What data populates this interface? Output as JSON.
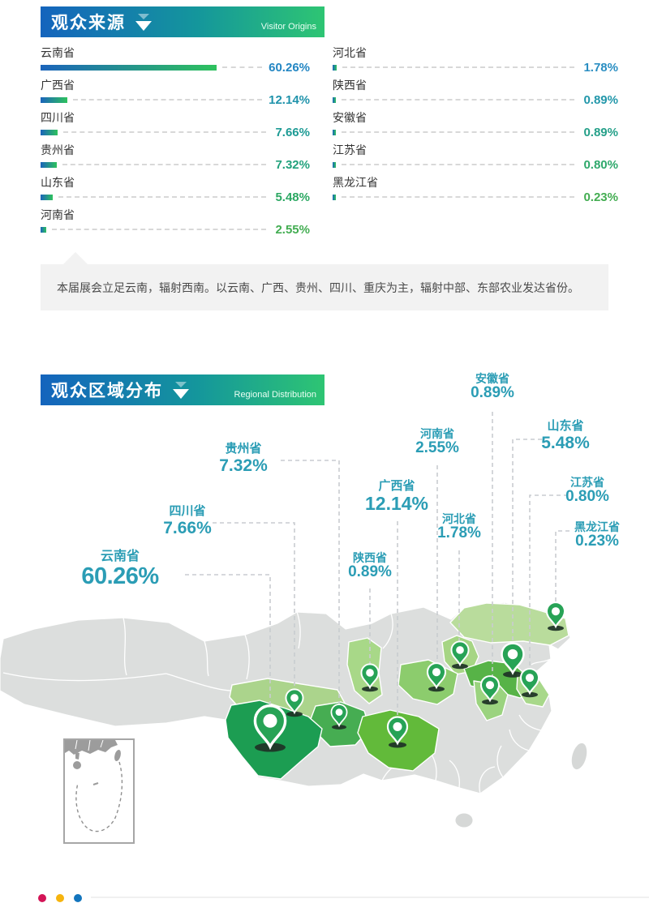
{
  "origins": {
    "title": "观众来源",
    "subtitle": "Visitor Origins",
    "items_left": [
      {
        "label": "云南省",
        "value": 60.26,
        "pct": "60.26%",
        "color": "#2386c3"
      },
      {
        "label": "广西省",
        "value": 12.14,
        "pct": "12.14%",
        "color": "#2093ab"
      },
      {
        "label": "四川省",
        "value": 7.66,
        "pct": "7.66%",
        "color": "#1e9b95"
      },
      {
        "label": "贵州省",
        "value": 7.32,
        "pct": "7.32%",
        "color": "#23a27d"
      },
      {
        "label": "山东省",
        "value": 5.48,
        "pct": "5.48%",
        "color": "#2ca863"
      },
      {
        "label": "河南省",
        "value": 2.55,
        "pct": "2.55%",
        "color": "#43ad52"
      }
    ],
    "items_right": [
      {
        "label": "河北省",
        "value": 1.78,
        "pct": "1.78%",
        "color": "#2a8ec2"
      },
      {
        "label": "陕西省",
        "value": 0.89,
        "pct": "0.89%",
        "color": "#2297aa"
      },
      {
        "label": "安徽省",
        "value": 0.89,
        "pct": "0.89%",
        "color": "#25a089"
      },
      {
        "label": "江苏省",
        "value": 0.8,
        "pct": "0.80%",
        "color": "#2ea86b"
      },
      {
        "label": "黑龙江省",
        "value": 0.23,
        "pct": "0.23%",
        "color": "#44ad52"
      }
    ],
    "note": "本届展会立足云南，辐射西南。以云南、广西、贵州、四川、重庆为主，辐射中部、东部农业发达省份。"
  },
  "distribution": {
    "title": "观众区域分布",
    "subtitle": "Regional Distribution",
    "regions": [
      {
        "name": "云南省",
        "pct": "60.26%"
      },
      {
        "name": "四川省",
        "pct": "7.66%"
      },
      {
        "name": "贵州省",
        "pct": "7.32%"
      },
      {
        "name": "广西省",
        "pct": "12.14%"
      },
      {
        "name": "陕西省",
        "pct": "0.89%"
      },
      {
        "name": "河南省",
        "pct": "2.55%"
      },
      {
        "name": "河北省",
        "pct": "1.78%"
      },
      {
        "name": "安徽省",
        "pct": "0.89%"
      },
      {
        "name": "山东省",
        "pct": "5.48%"
      },
      {
        "name": "江苏省",
        "pct": "0.80%"
      },
      {
        "name": "黑龙江省",
        "pct": "0.23%"
      }
    ]
  },
  "footer": {
    "dot_colors": [
      "#d31456",
      "#f6b40e",
      "#1375bd"
    ]
  },
  "chart_data": {
    "type": "bar",
    "title": "观众来源 (Visitor Origins)",
    "categories": [
      "云南省",
      "广西省",
      "四川省",
      "贵州省",
      "山东省",
      "河南省",
      "河北省",
      "陕西省",
      "安徽省",
      "江苏省",
      "黑龙江省"
    ],
    "values": [
      60.26,
      12.14,
      7.66,
      7.32,
      5.48,
      2.55,
      1.78,
      0.89,
      0.89,
      0.8,
      0.23
    ],
    "unit": "%",
    "xlabel": "",
    "ylabel": "",
    "legend": null,
    "orientation": "horizontal",
    "note": "本届展会立足云南，辐射西南。以云南、广西、贵州、四川、重庆为主，辐射中部、东部农业发达省份。"
  }
}
